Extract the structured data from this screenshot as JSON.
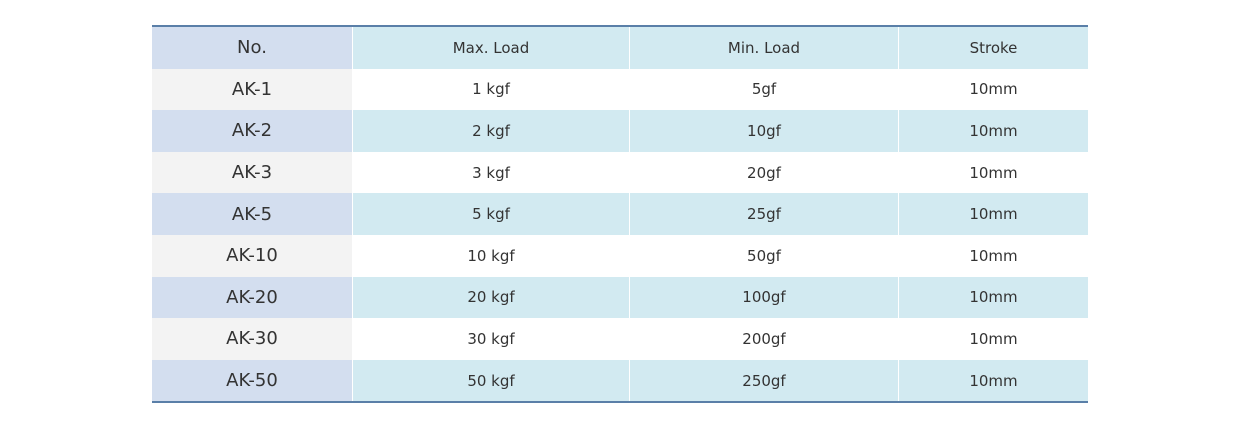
{
  "table": {
    "header": [
      "No.",
      "Max. Load",
      "Min. Load",
      "Stroke"
    ],
    "rows": [
      [
        "AK-1",
        "1 kgf",
        "5gf",
        "10mm"
      ],
      [
        "AK-2",
        "2 kgf",
        "10gf",
        "10mm"
      ],
      [
        "AK-3",
        "3 kgf",
        "20gf",
        "10mm"
      ],
      [
        "AK-5",
        "5 kgf",
        "25gf",
        "10mm"
      ],
      [
        "AK-10",
        "10 kgf",
        "50gf",
        "10mm"
      ],
      [
        "AK-20",
        "20 kgf",
        "100gf",
        "10mm"
      ],
      [
        "AK-30",
        "30 kgf",
        "200gf",
        "10mm"
      ],
      [
        "AK-50",
        "50 kgf",
        "250gf",
        "10mm"
      ]
    ]
  }
}
